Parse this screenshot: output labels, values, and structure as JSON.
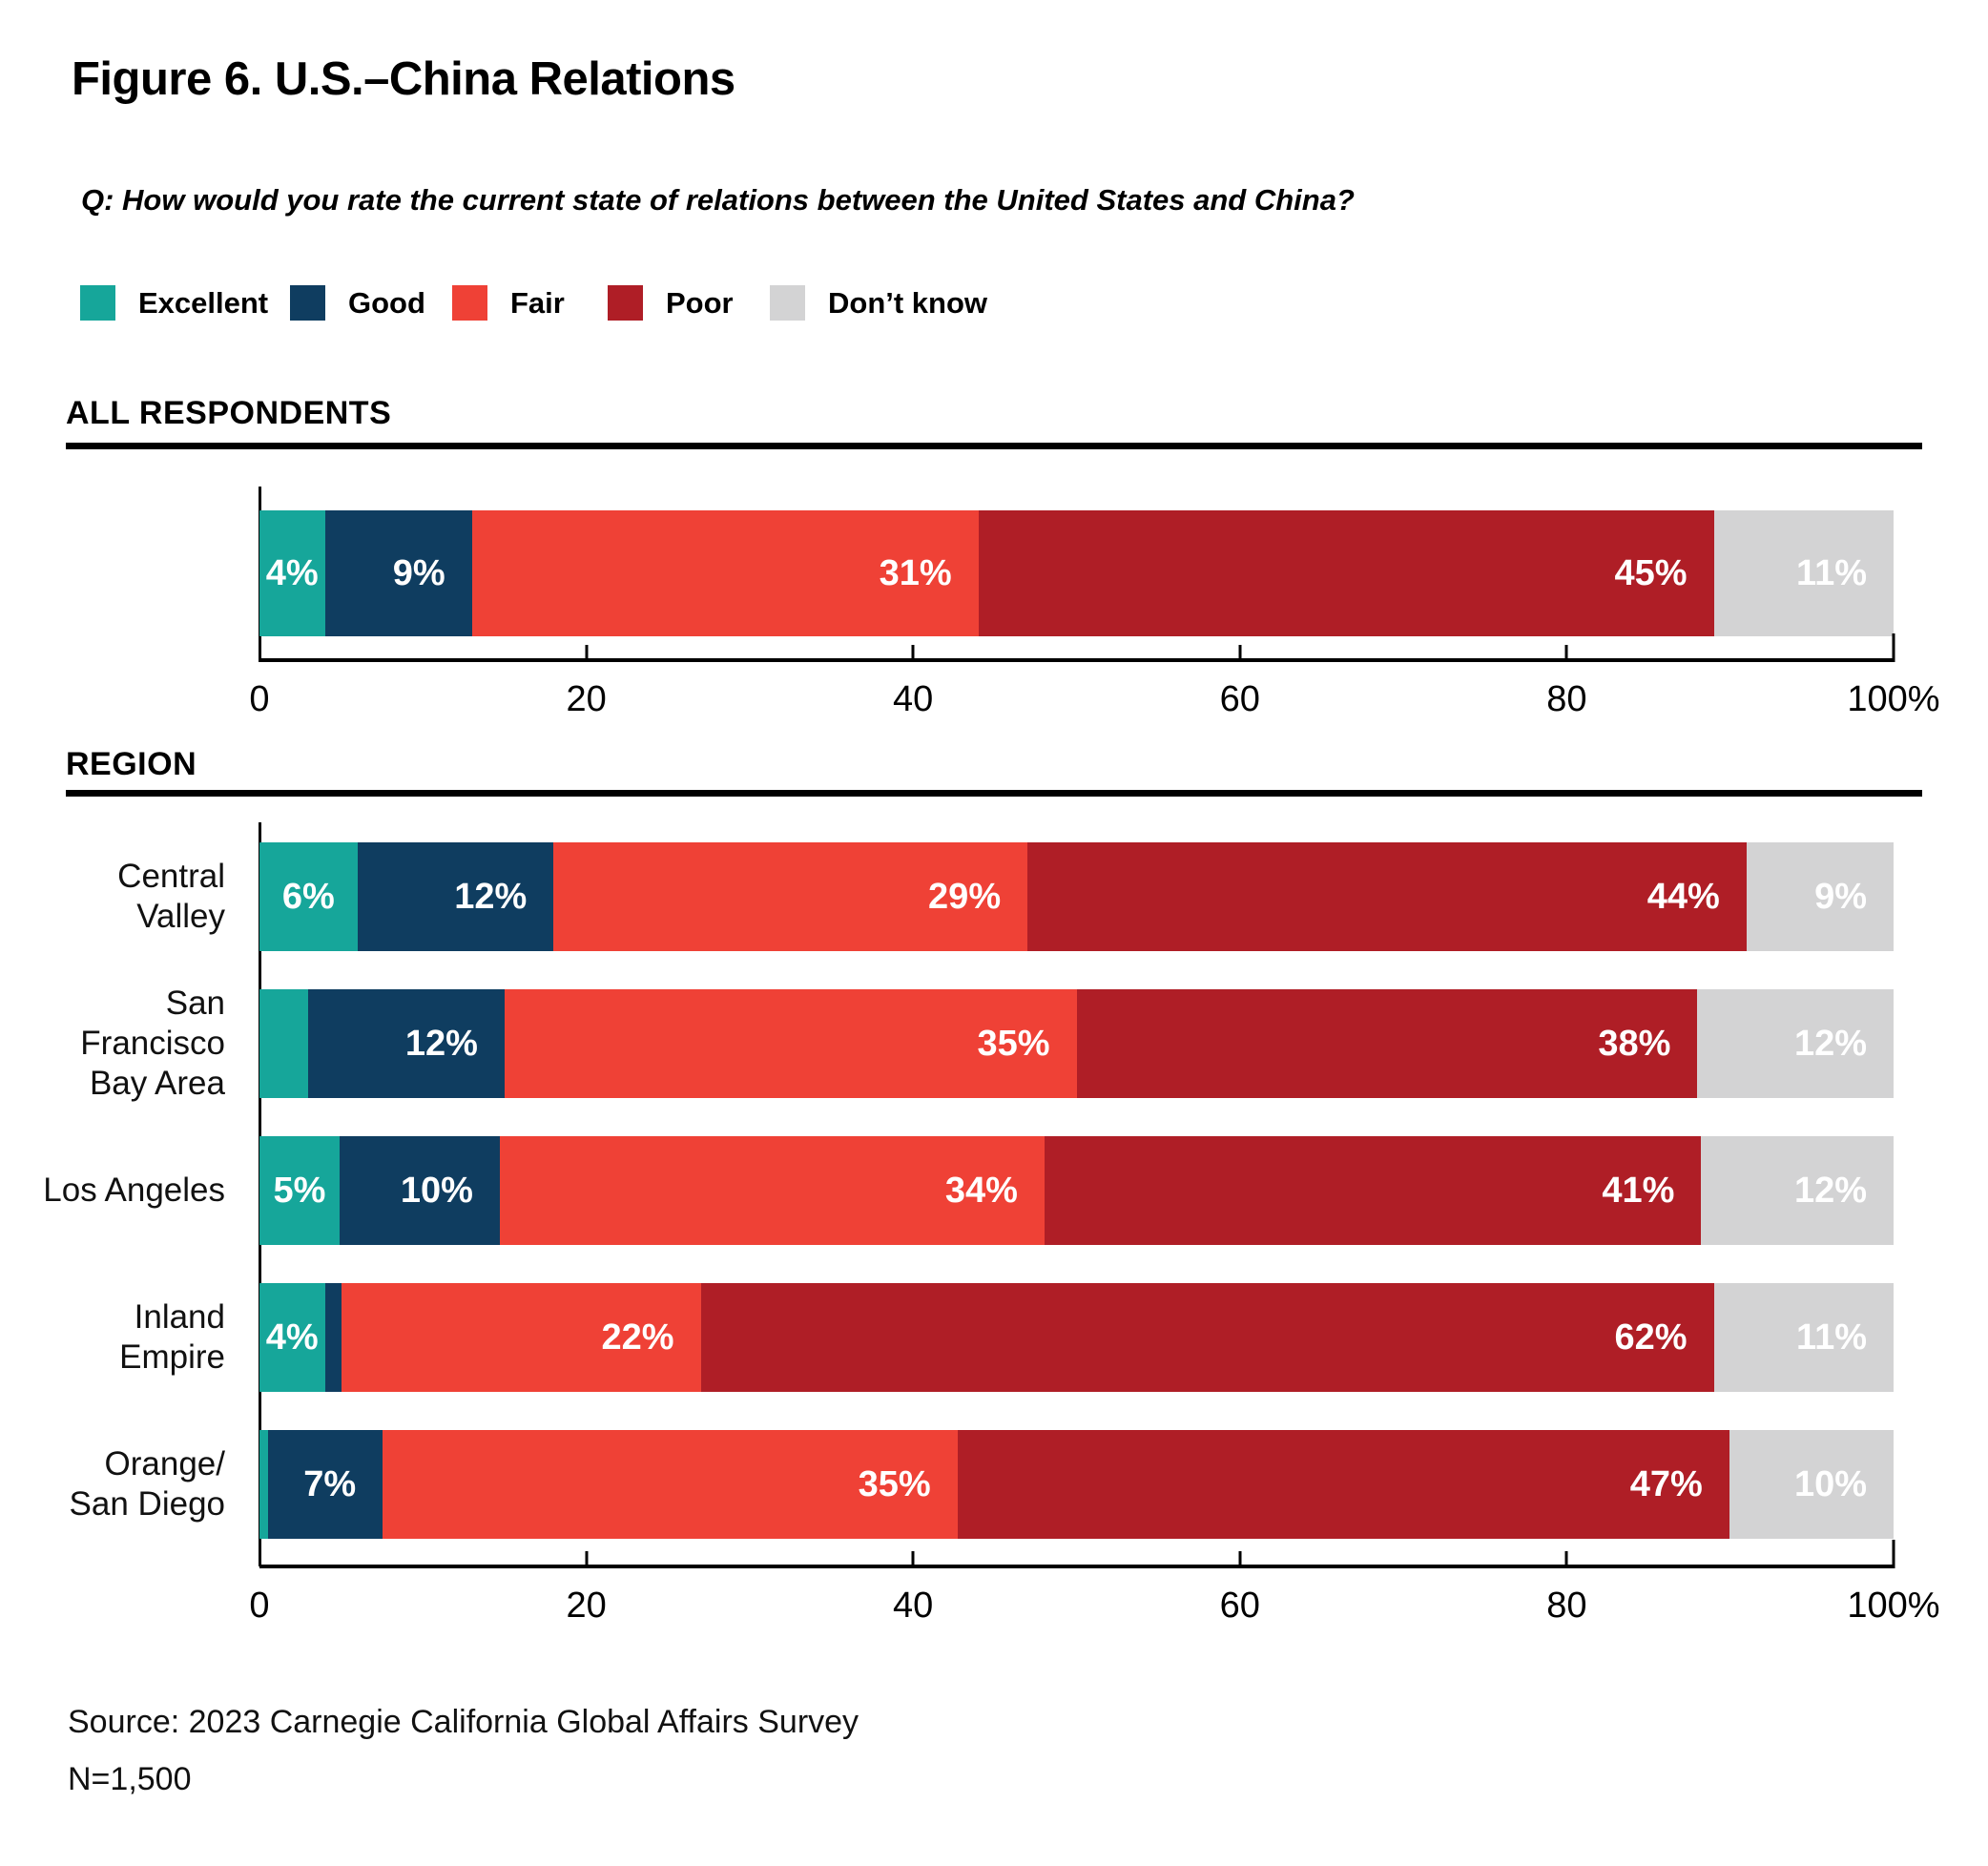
{
  "title": "Figure 6. U.S.–China Relations",
  "question": "Q: How would you rate the current state of relations between the United States and China?",
  "legend": [
    {
      "label": "Excellent",
      "color": "#16A69A",
      "icon": "excellent-swatch"
    },
    {
      "label": "Good",
      "color": "#0F3D60",
      "icon": "good-swatch"
    },
    {
      "label": "Fair",
      "color": "#EF4136",
      "icon": "fair-swatch"
    },
    {
      "label": "Poor",
      "color": "#AF1E26",
      "icon": "poor-swatch"
    },
    {
      "label": "Don’t know",
      "color": "#D3D3D4",
      "icon": "dont-know-swatch"
    }
  ],
  "sections": [
    {
      "heading": "ALL RESPONDENTS"
    },
    {
      "heading": "REGION"
    }
  ],
  "chart_data": [
    {
      "type": "bar",
      "stacked": true,
      "orientation": "horizontal",
      "section": "ALL RESPONDENTS",
      "categories": [
        "All respondents"
      ],
      "categories_display": [
        ""
      ],
      "series": [
        {
          "name": "Excellent",
          "values": [
            4
          ],
          "labels": [
            "4%"
          ]
        },
        {
          "name": "Good",
          "values": [
            9
          ],
          "labels": [
            "9%"
          ]
        },
        {
          "name": "Fair",
          "values": [
            31
          ],
          "labels": [
            "31%"
          ]
        },
        {
          "name": "Poor",
          "values": [
            45
          ],
          "labels": [
            "45%"
          ]
        },
        {
          "name": "Don't know",
          "values": [
            11
          ],
          "labels": [
            "11%"
          ]
        }
      ],
      "xlim": [
        0,
        100
      ],
      "x_ticks": [
        0,
        20,
        40,
        60,
        80,
        100
      ],
      "x_tick_labels": [
        "0",
        "20",
        "40",
        "60",
        "80",
        "100%"
      ],
      "grid": false,
      "legend_position": "top"
    },
    {
      "type": "bar",
      "stacked": true,
      "orientation": "horizontal",
      "section": "REGION",
      "categories": [
        "Central Valley",
        "San Francisco Bay Area",
        "Los Angeles",
        "Inland Empire",
        "Orange/San Diego"
      ],
      "categories_display": [
        "Central Valley",
        "San Francisco\nBay Area",
        "Los Angeles",
        "Inland Empire",
        "Orange/\nSan Diego"
      ],
      "series": [
        {
          "name": "Excellent",
          "values": [
            6,
            3,
            5,
            4,
            0.5
          ],
          "labels": [
            "6%",
            "",
            "5%",
            "4%",
            ""
          ]
        },
        {
          "name": "Good",
          "values": [
            12,
            12,
            10,
            1,
            7
          ],
          "labels": [
            "12%",
            "12%",
            "10%",
            "",
            "7%"
          ]
        },
        {
          "name": "Fair",
          "values": [
            29,
            35,
            34,
            22,
            35
          ],
          "labels": [
            "29%",
            "35%",
            "34%",
            "22%",
            "35%"
          ]
        },
        {
          "name": "Poor",
          "values": [
            44,
            38,
            41,
            62,
            47
          ],
          "labels": [
            "44%",
            "38%",
            "41%",
            "62%",
            "47%"
          ]
        },
        {
          "name": "Don't know",
          "values": [
            9,
            12,
            12,
            11,
            10
          ],
          "labels": [
            "9%",
            "12%",
            "12%",
            "11%",
            "10%"
          ]
        }
      ],
      "xlim": [
        0,
        100
      ],
      "x_ticks": [
        0,
        20,
        40,
        60,
        80,
        100
      ],
      "x_tick_labels": [
        "0",
        "20",
        "40",
        "60",
        "80",
        "100%"
      ],
      "grid": false,
      "legend_position": "top"
    }
  ],
  "source": {
    "line1": "Source: 2023 Carnegie California Global Affairs Survey",
    "line2": "N=1,500"
  }
}
